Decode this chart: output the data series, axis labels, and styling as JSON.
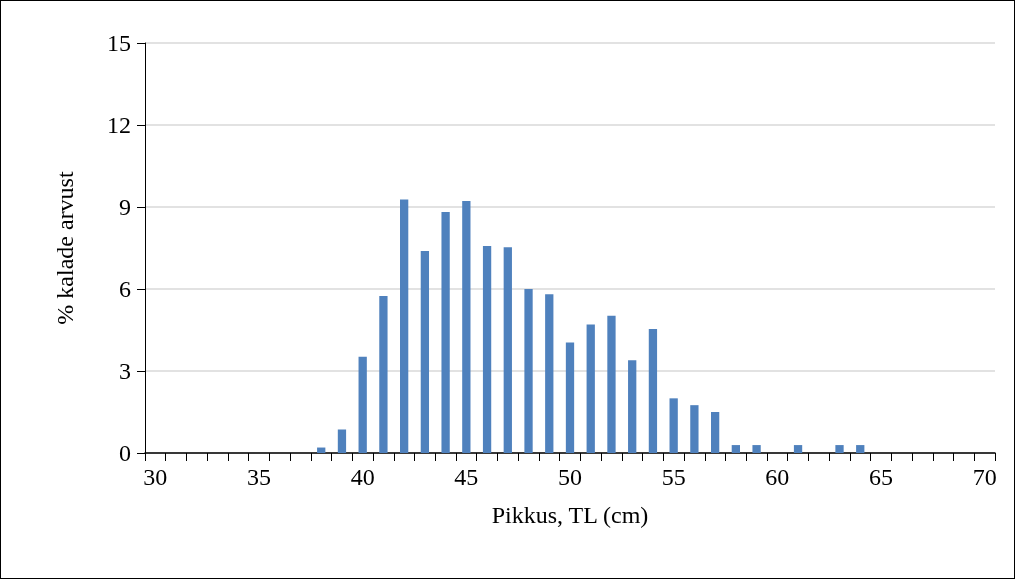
{
  "chart_data": {
    "type": "bar",
    "xlabel": "Pikkus, TL (cm)",
    "ylabel": "% kalade arvust",
    "categories": [
      "30",
      null,
      null,
      null,
      null,
      "35",
      null,
      null,
      null,
      null,
      "40",
      null,
      null,
      null,
      null,
      "45",
      null,
      null,
      null,
      null,
      "50",
      null,
      null,
      null,
      null,
      "55",
      null,
      null,
      null,
      null,
      "60",
      null,
      null,
      null,
      null,
      "65",
      null,
      null,
      null,
      null,
      "70"
    ],
    "values": [
      0,
      0,
      0,
      0,
      0,
      0,
      0,
      0,
      0.2,
      0.86,
      3.52,
      5.74,
      9.27,
      7.39,
      8.82,
      9.22,
      7.57,
      7.53,
      6.0,
      5.81,
      4.04,
      4.7,
      5.02,
      3.39,
      4.54,
      2.0,
      1.75,
      1.5,
      0.29,
      0.29,
      0,
      0.29,
      0,
      0.29,
      0.29,
      0,
      0,
      0,
      0,
      0,
      0
    ],
    "color": "#4f81bd",
    "ylim": [
      0,
      15
    ],
    "yticks": [
      0,
      3,
      6,
      9,
      12,
      15
    ],
    "grid": "y"
  }
}
